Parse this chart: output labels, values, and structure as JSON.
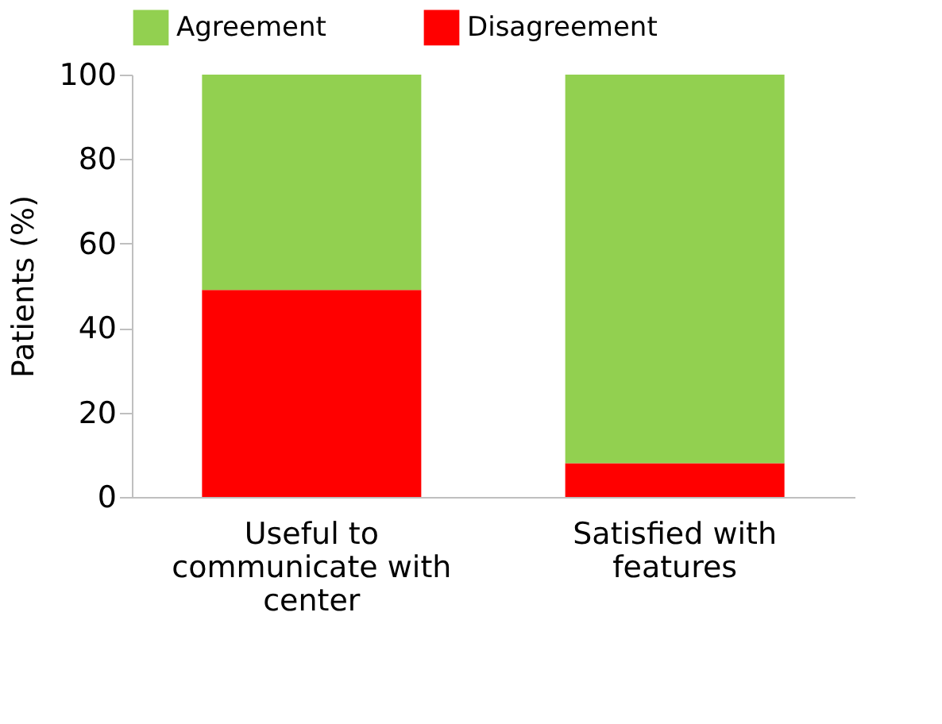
{
  "chart_data": {
    "type": "bar",
    "stacked": true,
    "ylabel": "Patients (%)",
    "categories": [
      "Useful to communicate with center",
      "Satisfied with features"
    ],
    "series": [
      {
        "name": "Disagreement",
        "color": "#ff0000",
        "values": [
          49,
          8
        ]
      },
      {
        "name": "Agreement",
        "color": "#92d050",
        "values": [
          51,
          92
        ]
      }
    ],
    "ylim": [
      0,
      100
    ],
    "yticks": [
      0,
      20,
      40,
      60,
      80,
      100
    ],
    "grid": false,
    "legend": "top"
  }
}
